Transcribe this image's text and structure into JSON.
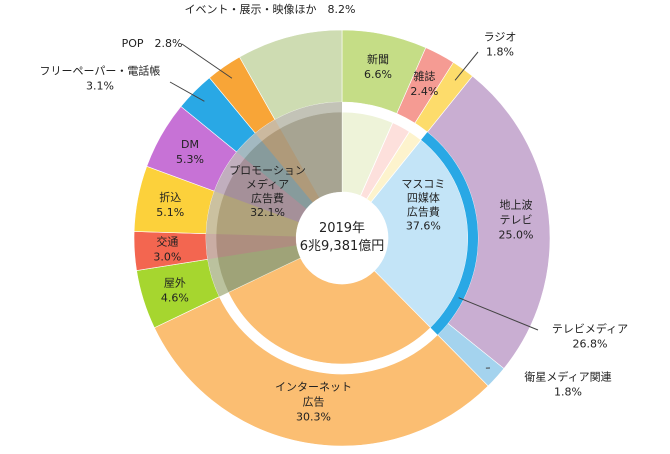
{
  "chart_data": {
    "type": "pie",
    "center_label": [
      "2019年",
      "6兆9,381億円"
    ],
    "rings": {
      "outer": [
        {
          "name": "新聞",
          "value": 6.6,
          "color": "#c5dd86",
          "label_lines": [
            "新聞",
            "6.6%"
          ]
        },
        {
          "name": "雑誌",
          "value": 2.4,
          "color": "#f59b93",
          "label_lines": [
            "雑誌",
            "2.4%"
          ]
        },
        {
          "name": "ラジオ",
          "value": 1.8,
          "color": "#fddc6b",
          "label_lines": [
            "ラジオ",
            "1.8%"
          ]
        },
        {
          "name": "地上波テレビ",
          "value": 25.0,
          "color": "#c9aed2",
          "label_lines": [
            "地上波",
            "テレビ",
            "25.0%"
          ]
        },
        {
          "name": "衛星メディア関連",
          "value": 1.8,
          "color": "#a4d3ee",
          "label_lines": [
            "衛星メディア関連",
            "1.8%"
          ]
        },
        {
          "name": "インターネット広告",
          "value": 30.3,
          "color": "#fbbe72",
          "label_lines": [
            "インターネット",
            "広告",
            "30.3%"
          ]
        },
        {
          "name": "屋外",
          "value": 4.6,
          "color": "#a6d62f",
          "label_lines": [
            "屋外",
            "4.6%"
          ]
        },
        {
          "name": "交通",
          "value": 3.0,
          "color": "#f36650",
          "label_lines": [
            "交通",
            "3.0%"
          ]
        },
        {
          "name": "折込",
          "value": 5.1,
          "color": "#fcd13b",
          "label_lines": [
            "折込",
            "5.1%"
          ]
        },
        {
          "name": "DM",
          "value": 5.3,
          "color": "#c772d6",
          "label_lines": [
            "DM",
            "5.3%"
          ]
        },
        {
          "name": "フリーペーパー・電話帳",
          "value": 3.1,
          "color": "#29a8e5",
          "label_lines": [
            "フリーペーパー・電話帳",
            "3.1%"
          ]
        },
        {
          "name": "POP",
          "value": 2.8,
          "color": "#f8a537",
          "label_lines": [
            "POP　2.8%"
          ]
        },
        {
          "name": "イベント・展示・映像ほか",
          "value": 8.2,
          "color": "#cedcb2",
          "label_lines": [
            "イベント・展示・映像ほか　8.2%"
          ]
        }
      ],
      "inner": [
        {
          "name": "マスコミ四媒体広告費",
          "value": 37.6,
          "color": "#c3e4f7",
          "label_lines": [
            "マスコミ",
            "四媒体",
            "広告費",
            "37.6%"
          ]
        },
        {
          "name": "インターネット広告",
          "value": 30.3,
          "color": "#fbbe72",
          "label_lines": []
        },
        {
          "name": "プロモーションメディア広告費",
          "value": 32.1,
          "color": "#b3a997",
          "label_lines": [
            "プロモーション",
            "メディア",
            "広告費",
            "32.1%"
          ]
        }
      ],
      "band": [
        {
          "name": "テレビメディア",
          "value": 26.8,
          "color": "#29a8e5",
          "label_lines": [
            "テレビメディア",
            "26.8%"
          ]
        }
      ]
    },
    "mass_media_inner_pale": [
      {
        "name": "新聞",
        "color": "#eef3d9"
      },
      {
        "name": "雑誌",
        "color": "#fde0dc"
      },
      {
        "name": "ラジオ",
        "color": "#fdf3cd"
      }
    ]
  }
}
